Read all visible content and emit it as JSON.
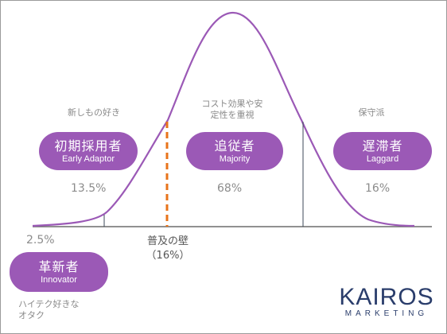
{
  "segments": {
    "innovator": {
      "note": "ハイテク好きな\nオタク",
      "name_jp": "革新者",
      "name_en": "Innovator",
      "share": "2.5%"
    },
    "early_adaptor": {
      "note": "新しもの好き",
      "name_jp": "初期採用者",
      "name_en": "Early Adaptor",
      "share": "13.5%"
    },
    "majority": {
      "note": "コスト効果や安\n定性を重視",
      "name_jp": "追従者",
      "name_en": "Majority",
      "share": "68%"
    },
    "laggard": {
      "note": "保守派",
      "name_jp": "遅滞者",
      "name_en": "Laggard",
      "share": "16%"
    }
  },
  "chasm": {
    "label": "普及の壁",
    "value": "（16%）"
  },
  "logo": {
    "main": "KAIROS",
    "sub": "MARKETING"
  },
  "colors": {
    "curve": "#9b59b6",
    "pill": "#9b59b6",
    "chasm_line": "#e8731a",
    "divider": "#3e4a5a",
    "baseline": "#6b6b6b",
    "logo": "#2a3d6b"
  }
}
